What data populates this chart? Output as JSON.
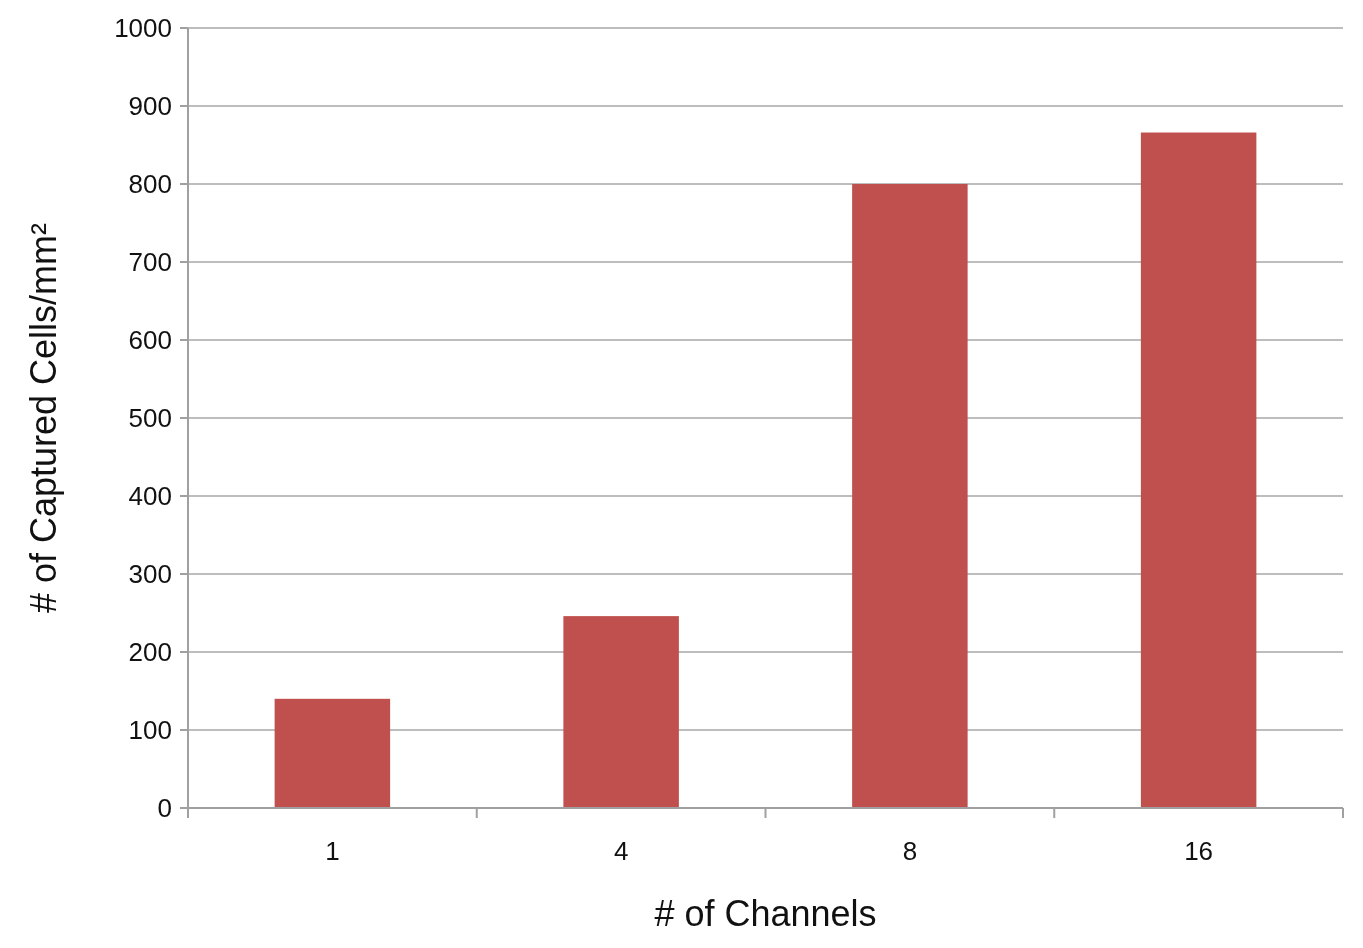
{
  "chart_data": {
    "type": "bar",
    "xlabel": "# of Channels",
    "ylabel": "# of Captured Cells/mm²",
    "categories": [
      "1",
      "4",
      "8",
      "16"
    ],
    "values": [
      140,
      246,
      800,
      866
    ],
    "color": "#c0504d",
    "ylim": [
      0,
      1000
    ],
    "yticks": [
      0,
      100,
      200,
      300,
      400,
      500,
      600,
      700,
      800,
      900,
      1000
    ],
    "grid": "y"
  }
}
